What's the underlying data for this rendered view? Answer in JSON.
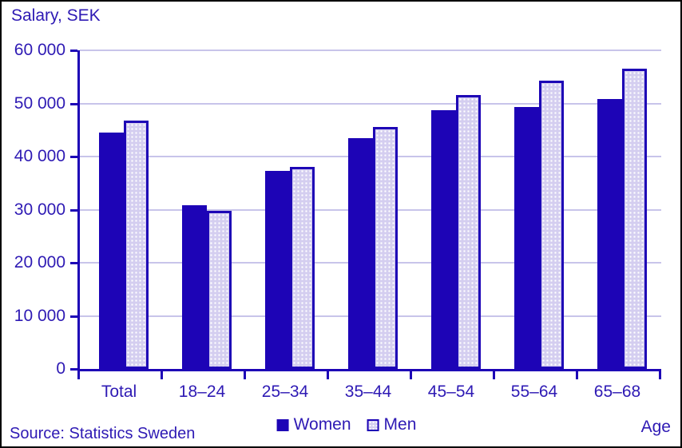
{
  "title": "Salary, SEK",
  "source": "Source: Statistics Sweden",
  "x_axis_title": "Age",
  "colors": {
    "women_bar": "#1d04b6",
    "men_bar_fill": "#d4cef0",
    "men_bar_border": "#1d04b6",
    "axis": "#1d04b6",
    "gridline": "#c8c4ea",
    "text": "#2e1ab4",
    "frame_border": "#000000",
    "background": "#ffffff"
  },
  "chart_data": {
    "type": "bar",
    "title": "Salary, SEK",
    "xlabel": "Age",
    "ylabel": "Salary, SEK",
    "categories": [
      "Total",
      "18–24",
      "25–34",
      "35–44",
      "45–54",
      "55–64",
      "65–68"
    ],
    "series": [
      {
        "name": "Women",
        "values": [
          44500,
          30900,
          37300,
          43500,
          48700,
          49300,
          50900
        ]
      },
      {
        "name": "Men",
        "values": [
          46800,
          29800,
          38000,
          45500,
          51600,
          54300,
          56500
        ]
      }
    ],
    "ylim": [
      0,
      60000
    ],
    "y_ticks": [
      0,
      10000,
      20000,
      30000,
      40000,
      50000,
      60000
    ],
    "y_tick_labels": [
      "0",
      "10 000",
      "20 000",
      "30 000",
      "40 000",
      "50 000",
      "60 000"
    ],
    "grid": "horizontal",
    "legend_position": "bottom"
  }
}
